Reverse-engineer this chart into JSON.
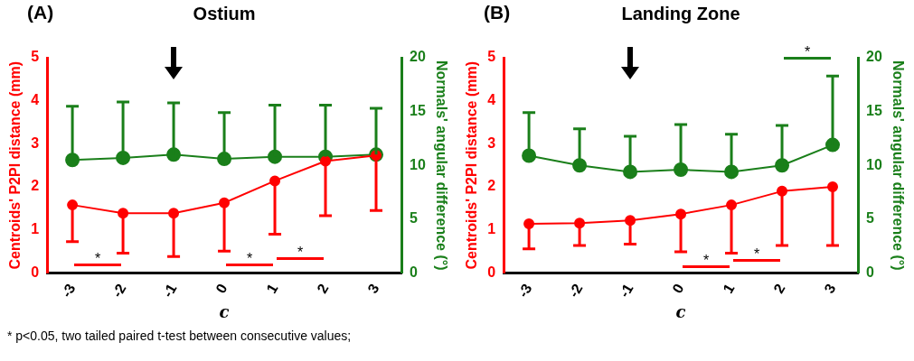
{
  "chart_data": [
    {
      "type": "line",
      "title": "Ostium",
      "categories": [
        "-3",
        "-2",
        "-1",
        "0",
        "1",
        "2",
        "3"
      ],
      "xlabel": "c",
      "ylabel": "Centroids' P2PI distance (mm)",
      "y2label": "Normals' angular difference (°)",
      "ylim": [
        0,
        5
      ],
      "yticks": [
        0,
        1,
        2,
        3,
        4,
        5
      ],
      "y2lim": [
        0,
        20
      ],
      "y2ticks": [
        0,
        5,
        10,
        15,
        20
      ],
      "grid": false,
      "legend": false,
      "marker": "circle",
      "series": [
        {
          "color": "#ff0000",
          "values": [
            1.58,
            1.39,
            1.39,
            1.63,
            2.14,
            2.6,
            2.73
          ],
          "errors": [
            [
              0.73,
              1.58
            ],
            [
              0.46,
              1.39
            ],
            [
              0.38,
              1.39
            ],
            [
              0.51,
              1.63
            ],
            [
              0.9,
              2.14
            ],
            [
              1.33,
              2.6
            ],
            [
              1.45,
              2.73
            ]
          ]
        },
        {
          "color": "#1a7f1a",
          "axis": "y2",
          "values": [
            10.5,
            10.7,
            11.0,
            10.6,
            10.8,
            10.8,
            11.0
          ],
          "errors": [
            [
              10.5,
              15.5
            ],
            [
              10.7,
              15.9
            ],
            [
              11.0,
              15.8
            ],
            [
              10.6,
              14.9
            ],
            [
              10.8,
              15.6
            ],
            [
              10.8,
              15.6
            ],
            [
              11.0,
              15.3
            ]
          ]
        }
      ],
      "annotations": [
        "(A)",
        "*",
        "*",
        "*",
        "* p<0.05, two tailed paired t-test between consecutive values;"
      ]
    },
    {
      "type": "line",
      "title": "Landing Zone",
      "categories": [
        "-3",
        "-2",
        "-1",
        "0",
        "1",
        "2",
        "3"
      ],
      "xlabel": "c",
      "ylabel": "Centroids' P2PI distance (mm)",
      "y2label": "Normals' angular difference (°)",
      "ylim": [
        0,
        5
      ],
      "yticks": [
        0,
        1,
        2,
        3,
        4,
        5
      ],
      "y2lim": [
        0,
        20
      ],
      "y2ticks": [
        0,
        5,
        10,
        15,
        20
      ],
      "grid": false,
      "legend": false,
      "marker": "circle",
      "series": [
        {
          "color": "#ff0000",
          "values": [
            1.14,
            1.16,
            1.22,
            1.37,
            1.58,
            1.9,
            2.0
          ],
          "errors": [
            [
              0.56,
              1.14
            ],
            [
              0.64,
              1.16
            ],
            [
              0.67,
              1.22
            ],
            [
              0.49,
              1.37
            ],
            [
              0.46,
              1.58
            ],
            [
              0.64,
              1.9
            ],
            [
              0.64,
              2.0
            ]
          ]
        },
        {
          "color": "#1a7f1a",
          "axis": "y2",
          "values": [
            10.9,
            10.0,
            9.4,
            9.6,
            9.4,
            10.0,
            11.9
          ],
          "errors": [
            [
              10.9,
              14.9
            ],
            [
              10.0,
              13.4
            ],
            [
              9.4,
              12.7
            ],
            [
              9.6,
              13.8
            ],
            [
              9.4,
              12.9
            ],
            [
              10.0,
              13.7
            ],
            [
              11.9,
              18.3
            ]
          ]
        }
      ],
      "annotations": [
        "(B)",
        "*",
        "*",
        "*"
      ]
    }
  ]
}
